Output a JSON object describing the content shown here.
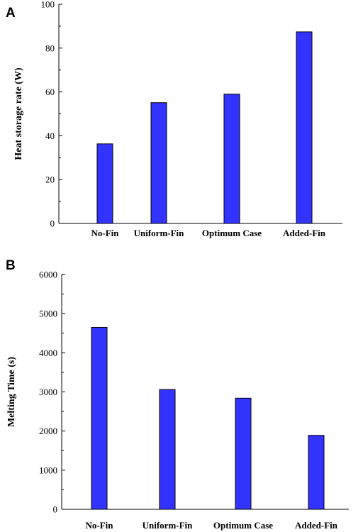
{
  "chart_data": [
    {
      "panel": "A",
      "type": "bar",
      "categories": [
        "No-Fin",
        "Uniform-Fin",
        "Optimum Case",
        "Added-Fin"
      ],
      "values": [
        36.3,
        55.1,
        59.0,
        87.4
      ],
      "ylabel": "Heat storage rate (W)",
      "ylim": [
        0,
        100
      ],
      "yticks": [
        0,
        20,
        40,
        60,
        80,
        100
      ],
      "bar_color": "#3333ff",
      "grid": false
    },
    {
      "panel": "B",
      "type": "bar",
      "categories": [
        "No-Fin",
        "Uniform-Fin",
        "Optimum Case",
        "Added-Fin"
      ],
      "values": [
        4650,
        3060,
        2840,
        1890
      ],
      "ylabel": "Melting Time (s)",
      "ylim": [
        0,
        6000
      ],
      "yticks": [
        0,
        1000,
        2000,
        3000,
        4000,
        5000,
        6000
      ],
      "bar_color": "#3333ff",
      "grid": false
    }
  ]
}
